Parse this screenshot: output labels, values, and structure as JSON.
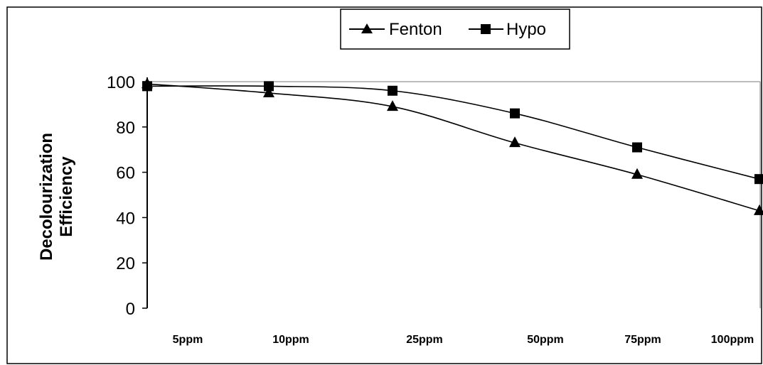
{
  "colors": {
    "series_line": "#000000",
    "plot_border": "#a6a6a6",
    "background": "#ffffff"
  },
  "chart_data": {
    "type": "line",
    "title": "",
    "xlabel": "",
    "ylabel_lines": [
      "Decolourization",
      "Efficiency"
    ],
    "categories": [
      "5ppm",
      "10ppm",
      "25ppm",
      "50ppm",
      "75ppm",
      "100ppm"
    ],
    "x_is_categorical_but_spaced": true,
    "x_values": [
      5,
      10,
      25,
      50,
      75,
      100
    ],
    "ylim": [
      0,
      100
    ],
    "yticks": [
      0,
      20,
      40,
      60,
      80,
      100
    ],
    "grid": false,
    "legend_position": "top-center",
    "series": [
      {
        "name": "Fenton",
        "marker": "triangle-icon",
        "points": [
          {
            "label": "5ppm",
            "y": 99
          },
          {
            "label": "10ppm",
            "y": 95
          },
          {
            "label": "",
            "y": 89
          },
          {
            "label": "",
            "y": 73
          },
          {
            "label": "",
            "y": 59
          },
          {
            "label": "",
            "y": 43
          }
        ]
      },
      {
        "name": "Hypo",
        "marker": "square-icon",
        "points": [
          {
            "label": "5ppm",
            "y": 98
          },
          {
            "label": "10ppm",
            "y": 98
          },
          {
            "label": "",
            "y": 96
          },
          {
            "label": "",
            "y": 86
          },
          {
            "label": "",
            "y": 71
          },
          {
            "label": "",
            "y": 57
          }
        ]
      }
    ]
  }
}
